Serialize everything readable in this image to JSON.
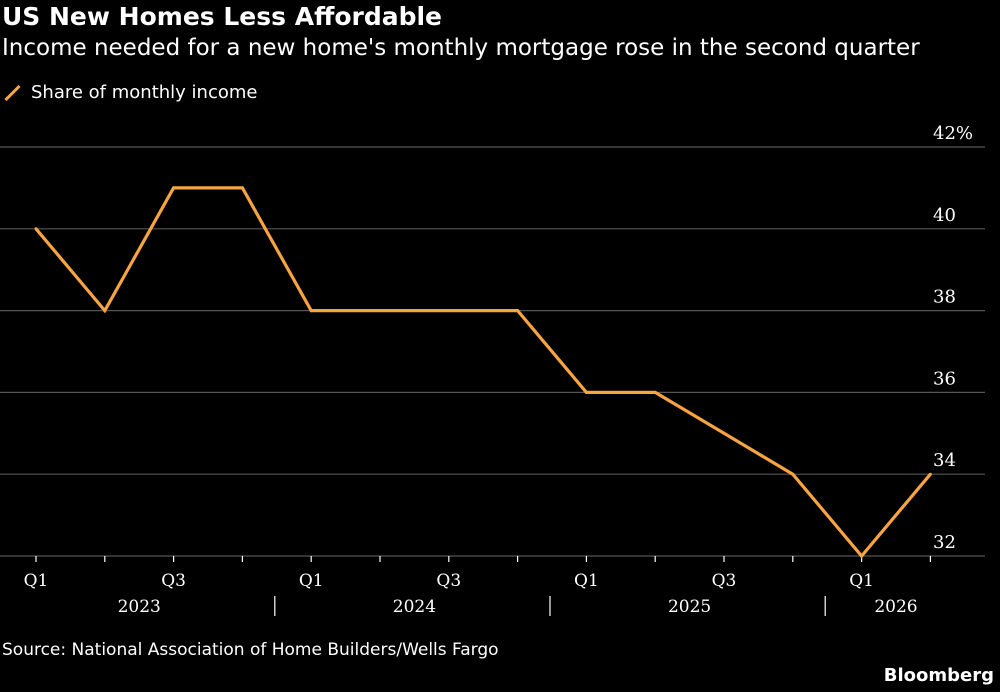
{
  "header": {
    "title": "US New Homes Less Affordable",
    "subtitle": "Income needed for a new home's monthly mortgage rose in the second quarter"
  },
  "legend": {
    "label": "Share of monthly income"
  },
  "footer": {
    "source": "Source: National Association of Home Builders/Wells Fargo",
    "brand": "Bloomberg"
  },
  "colors": {
    "background": "#000000",
    "line": "#f7a441",
    "grid": "#555555",
    "text": "#ffffff"
  },
  "chart_data": {
    "type": "line",
    "series": [
      {
        "name": "Share of monthly income",
        "x": [
          "2023 Q1",
          "2023 Q2",
          "2023 Q3",
          "2023 Q4",
          "2024 Q1",
          "2024 Q2",
          "2024 Q3",
          "2024 Q4",
          "2025 Q1",
          "2025 Q2",
          "2025 Q3",
          "2025 Q4",
          "2026 Q1",
          "2026 Q2"
        ],
        "values": [
          40,
          38,
          41,
          41,
          38,
          38,
          38,
          38,
          36,
          36,
          35,
          34,
          32,
          34
        ]
      }
    ],
    "ylim": [
      32,
      42
    ],
    "y_ticks": [
      {
        "value": 42,
        "label": "42%"
      },
      {
        "value": 40,
        "label": "40"
      },
      {
        "value": 38,
        "label": "38"
      },
      {
        "value": 36,
        "label": "36"
      },
      {
        "value": 34,
        "label": "34"
      },
      {
        "value": 32,
        "label": "32"
      }
    ],
    "x_tick_labels": [
      {
        "index": 0,
        "label": "Q1"
      },
      {
        "index": 2,
        "label": "Q3"
      },
      {
        "index": 4,
        "label": "Q1"
      },
      {
        "index": 6,
        "label": "Q3"
      },
      {
        "index": 8,
        "label": "Q1"
      },
      {
        "index": 10,
        "label": "Q3"
      },
      {
        "index": 12,
        "label": "Q1"
      }
    ],
    "year_labels": [
      {
        "center_index": 1.5,
        "label": "2023"
      },
      {
        "center_index": 5.5,
        "label": "2024"
      },
      {
        "center_index": 9.5,
        "label": "2025"
      },
      {
        "center_index": 12.5,
        "label": "2026"
      }
    ],
    "year_separators_after_index": [
      3,
      7,
      11
    ],
    "grid": true,
    "y_axis_side": "right",
    "legend_position": "top-left"
  }
}
